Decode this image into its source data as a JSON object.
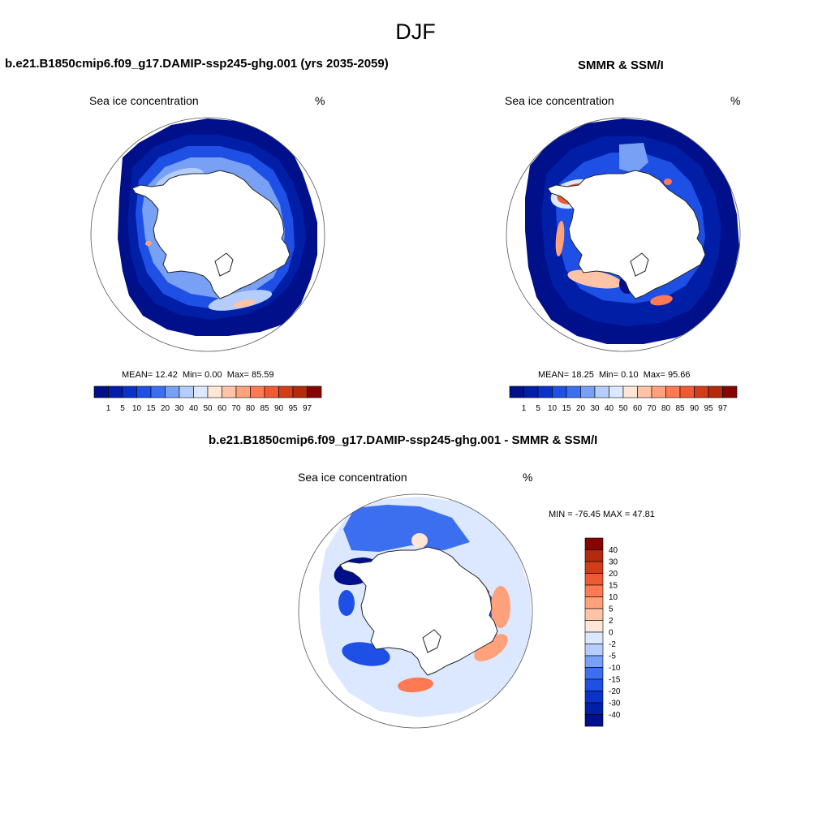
{
  "title": "DJF",
  "colors": {
    "land": "#ffffff",
    "coast": "#222222",
    "seq": [
      "#000f8a",
      "#001ea6",
      "#0a32c8",
      "#1e50e6",
      "#3c6ef0",
      "#78a0f5",
      "#b4cdfa",
      "#dce8ff",
      "#ffe6d6",
      "#ffc4a6",
      "#ffa27c",
      "#ff7a52",
      "#f05a32",
      "#d23c18",
      "#b42a0c",
      "#860404"
    ],
    "div": [
      "#000f8a",
      "#001ea6",
      "#0a32c8",
      "#1e50e6",
      "#3c6ef0",
      "#78a0f5",
      "#b4cdfa",
      "#dce8ff",
      "#ffe6d6",
      "#ffc4a6",
      "#ffa27c",
      "#ff7a52",
      "#f05a32",
      "#d23c18",
      "#b42a0c",
      "#860404"
    ]
  },
  "panels": [
    {
      "title": "b.e21.B1850cmip6.f09_g17.DAMIP-ssp245-ghg.001 (yrs 2035-2059)",
      "left_label": "Sea ice concentration",
      "right_label": "%",
      "mean_label": "MEAN=",
      "mean": "12.42",
      "min_label": "Min=",
      "min": "0.00",
      "max_label": "Max=",
      "max": "85.59",
      "legend_ticks": [
        "1",
        "5",
        "10",
        "15",
        "20",
        "30",
        "40",
        "50",
        "60",
        "70",
        "80",
        "85",
        "90",
        "95",
        "97"
      ]
    },
    {
      "title": "SMMR & SSM/I",
      "left_label": "Sea ice concentration",
      "right_label": "%",
      "mean_label": "MEAN=",
      "mean": "18.25",
      "min_label": "Min=",
      "min": "0.10",
      "max_label": "Max=",
      "max": "95.66",
      "legend_ticks": [
        "1",
        "5",
        "10",
        "15",
        "20",
        "30",
        "40",
        "50",
        "60",
        "70",
        "80",
        "85",
        "90",
        "95",
        "97"
      ]
    },
    {
      "title": "b.e21.B1850cmip6.f09_g17.DAMIP-ssp245-ghg.001 - SMMR & SSM/I",
      "left_label": "Sea ice concentration",
      "right_label": "%",
      "minmax": "MIN = -76.45 MAX =  47.81",
      "legend_ticks": [
        "40",
        "30",
        "20",
        "15",
        "10",
        "5",
        "2",
        "0",
        "-2",
        "-5",
        "-10",
        "-15",
        "-20",
        "-30",
        "-40"
      ]
    }
  ]
}
